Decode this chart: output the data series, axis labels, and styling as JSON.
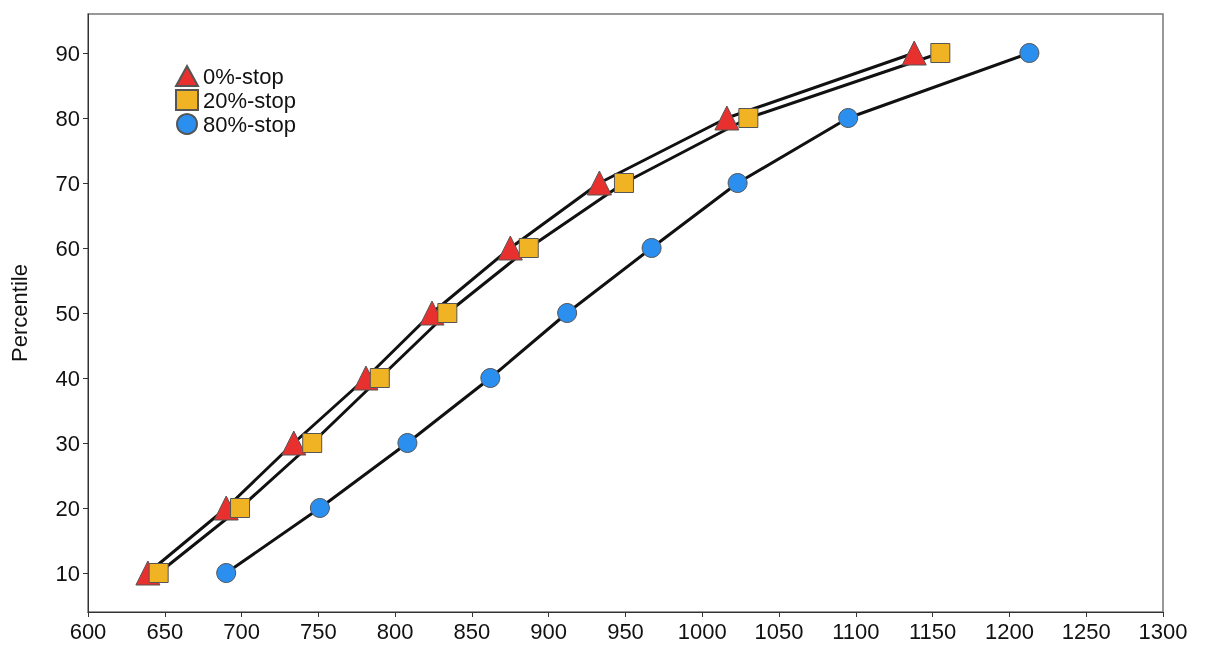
{
  "chart_data": {
    "type": "line",
    "ylabel": "Percentile",
    "xlim": [
      600,
      1300
    ],
    "xticks": [
      600,
      650,
      700,
      750,
      800,
      850,
      900,
      950,
      1000,
      1050,
      1100,
      1150,
      1200,
      1250,
      1300
    ],
    "ylim": [
      4,
      96
    ],
    "yticks": [
      10,
      20,
      30,
      40,
      50,
      60,
      70,
      80,
      90
    ],
    "grid": false,
    "legend": "top left",
    "line_style": "solid",
    "series": [
      {
        "name": "0%-stop",
        "color": "#e8312f",
        "marker": "triangle",
        "x": [
          639,
          690,
          734,
          781,
          824,
          875,
          933,
          1016,
          1138
        ],
        "values": [
          10,
          20,
          30,
          40,
          50,
          60,
          70,
          80,
          90
        ]
      },
      {
        "name": "20%-stop",
        "color": "#f0b323",
        "marker": "square",
        "x": [
          646,
          699,
          746,
          790,
          834,
          887,
          949,
          1030,
          1155
        ],
        "values": [
          10,
          20,
          30,
          40,
          50,
          60,
          70,
          80,
          90
        ]
      },
      {
        "name": "80%-stop",
        "color": "#2b8ff0",
        "marker": "circle",
        "x": [
          690,
          751,
          808,
          862,
          912,
          967,
          1023,
          1095,
          1213
        ],
        "values": [
          10,
          20,
          30,
          40,
          50,
          60,
          70,
          80,
          90
        ]
      }
    ]
  }
}
